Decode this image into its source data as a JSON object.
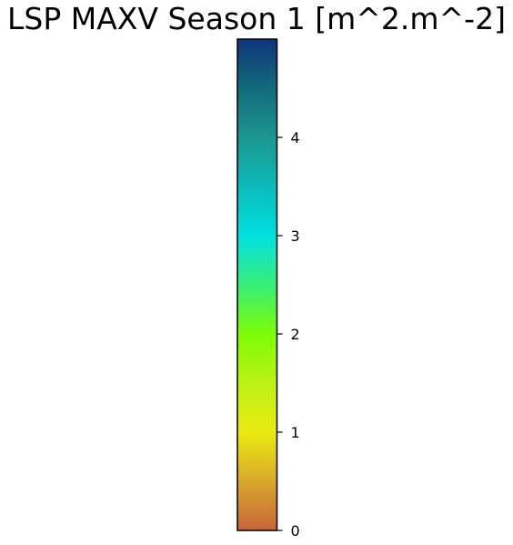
{
  "chart_data": {
    "type": "colorbar",
    "title": "LSP MAXV Season 1 [m^2.m^-2]",
    "orientation": "vertical",
    "vmin": 0,
    "vmax": 5,
    "ticks": [
      0,
      1,
      2,
      3,
      4
    ],
    "tick_labels": [
      "0",
      "1",
      "2",
      "3",
      "4"
    ],
    "colormap_stops": [
      {
        "value": 0.0,
        "color": "#c8643c"
      },
      {
        "value": 0.5,
        "color": "#d8a82a"
      },
      {
        "value": 1.0,
        "color": "#eaea12"
      },
      {
        "value": 1.5,
        "color": "#bcf214"
      },
      {
        "value": 2.0,
        "color": "#7efc06"
      },
      {
        "value": 2.5,
        "color": "#36ee78"
      },
      {
        "value": 3.0,
        "color": "#02e0e0"
      },
      {
        "value": 3.5,
        "color": "#0cbaba"
      },
      {
        "value": 4.0,
        "color": "#1c968e"
      },
      {
        "value": 4.5,
        "color": "#146a7c"
      },
      {
        "value": 5.0,
        "color": "#0e3478"
      }
    ]
  }
}
